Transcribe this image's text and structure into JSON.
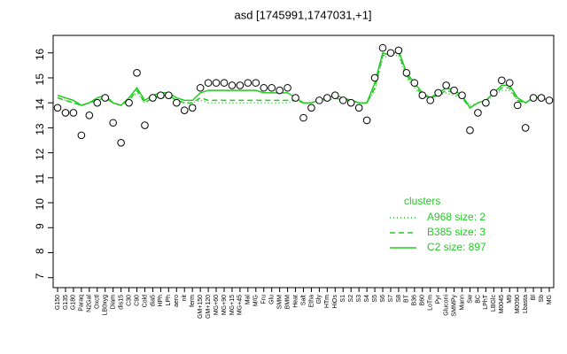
{
  "chart_data": {
    "type": "line",
    "title": "asd [1745991,1747031,+1]",
    "categories": [
      "G150",
      "G135",
      "G180",
      "Paraq",
      "N2Gal",
      "Oxctl",
      "LB0xyg",
      "Diam",
      "dis15",
      "C30",
      "C90",
      "Cold",
      "dia5",
      "HPh",
      "LPh",
      "aero",
      "nit",
      "ferm",
      "GM+150",
      "GM+120",
      "MG+60",
      "MG+90",
      "MG+15",
      "MG+45",
      "Mal",
      "M/G",
      "Fru",
      "Glu",
      "SMM",
      "BMM",
      "Heat",
      "Salt",
      "Etha",
      "Gly",
      "HTm",
      "HiOs",
      "S1",
      "S2",
      "S3",
      "S4",
      "S5",
      "S6",
      "S7",
      "S8",
      "BT",
      "B36",
      "B60",
      "LoTm",
      "Pyr",
      "Gluconi",
      "SMMPy",
      "Mann",
      "Sw",
      "BC",
      "LPhT",
      "LBGlc",
      "M0045",
      "M9",
      "M0090",
      "Lbasta",
      "Bl",
      "Sb",
      "MG"
    ],
    "points": [
      13.8,
      13.6,
      13.6,
      12.7,
      13.5,
      14.0,
      14.2,
      13.2,
      12.4,
      14.0,
      15.2,
      13.1,
      14.2,
      14.3,
      14.3,
      14.0,
      13.7,
      13.8,
      14.6,
      14.8,
      14.8,
      14.8,
      14.7,
      14.7,
      14.8,
      14.8,
      14.6,
      14.6,
      14.5,
      14.6,
      14.2,
      13.4,
      13.8,
      14.1,
      14.2,
      14.3,
      14.1,
      14.0,
      13.8,
      13.3,
      15.0,
      16.2,
      16.0,
      16.1,
      15.2,
      14.8,
      14.3,
      14.1,
      14.4,
      14.7,
      14.5,
      14.3,
      12.9,
      13.6,
      14.0,
      14.4,
      14.9,
      14.8,
      13.9,
      13.0,
      14.2,
      14.2,
      14.1
    ],
    "point_color": "#000000",
    "series": [
      {
        "name": "A968 size: 2",
        "color": "#22cc22",
        "dash": "1,3",
        "values": [
          14.2,
          14.1,
          14.0,
          13.9,
          14.0,
          14.1,
          14.2,
          14.0,
          13.9,
          14.1,
          14.4,
          14.0,
          14.2,
          14.2,
          14.2,
          14.1,
          14.0,
          14.0,
          14.1,
          14.0,
          14.0,
          14.0,
          14.0,
          14.0,
          14.0,
          14.0,
          14.0,
          14.0,
          14.0,
          14.0,
          14.1,
          14.0,
          14.0,
          14.1,
          14.1,
          14.2,
          14.1,
          14.1,
          14.0,
          14.0,
          14.5,
          15.8,
          15.9,
          15.9,
          15.0,
          14.6,
          14.3,
          14.2,
          14.3,
          14.4,
          14.3,
          14.2,
          13.9,
          14.0,
          14.1,
          14.3,
          14.5,
          14.5,
          14.1,
          14.0,
          14.2,
          14.2,
          14.1
        ]
      },
      {
        "name": "B385 size: 3",
        "color": "#22cc22",
        "dash": "6,4",
        "values": [
          14.2,
          14.1,
          14.0,
          13.9,
          14.0,
          14.1,
          14.2,
          14.0,
          13.9,
          14.1,
          14.5,
          14.0,
          14.2,
          14.3,
          14.3,
          14.1,
          14.0,
          14.0,
          14.2,
          14.1,
          14.1,
          14.1,
          14.1,
          14.1,
          14.1,
          14.1,
          14.1,
          14.1,
          14.1,
          14.1,
          14.1,
          14.0,
          14.0,
          14.1,
          14.1,
          14.2,
          14.1,
          14.1,
          14.0,
          14.0,
          14.6,
          15.9,
          15.9,
          16.0,
          15.1,
          14.7,
          14.3,
          14.2,
          14.3,
          14.5,
          14.4,
          14.2,
          13.8,
          14.0,
          14.1,
          14.3,
          14.6,
          14.6,
          14.1,
          14.0,
          14.2,
          14.2,
          14.1
        ]
      },
      {
        "name": "C2 size: 897",
        "color": "#22cc22",
        "dash": "",
        "values": [
          14.3,
          14.2,
          14.1,
          13.9,
          14.0,
          14.2,
          14.3,
          14.0,
          13.9,
          14.2,
          14.6,
          14.1,
          14.3,
          14.4,
          14.4,
          14.2,
          14.1,
          14.1,
          14.4,
          14.5,
          14.5,
          14.5,
          14.5,
          14.5,
          14.5,
          14.5,
          14.4,
          14.4,
          14.4,
          14.4,
          14.2,
          14.0,
          14.0,
          14.1,
          14.2,
          14.3,
          14.2,
          14.1,
          14.0,
          14.0,
          14.8,
          16.0,
          15.9,
          16.1,
          15.2,
          14.8,
          14.4,
          14.2,
          14.4,
          14.6,
          14.5,
          14.3,
          13.8,
          14.0,
          14.1,
          14.4,
          14.7,
          14.7,
          14.2,
          14.0,
          14.2,
          14.2,
          14.1
        ]
      }
    ],
    "legend_title": "clusters",
    "legend_color": "#22cc22",
    "ylim": [
      6.6,
      16.7
    ],
    "yticks": [
      7,
      8,
      9,
      10,
      11,
      12,
      13,
      14,
      15,
      16
    ]
  }
}
